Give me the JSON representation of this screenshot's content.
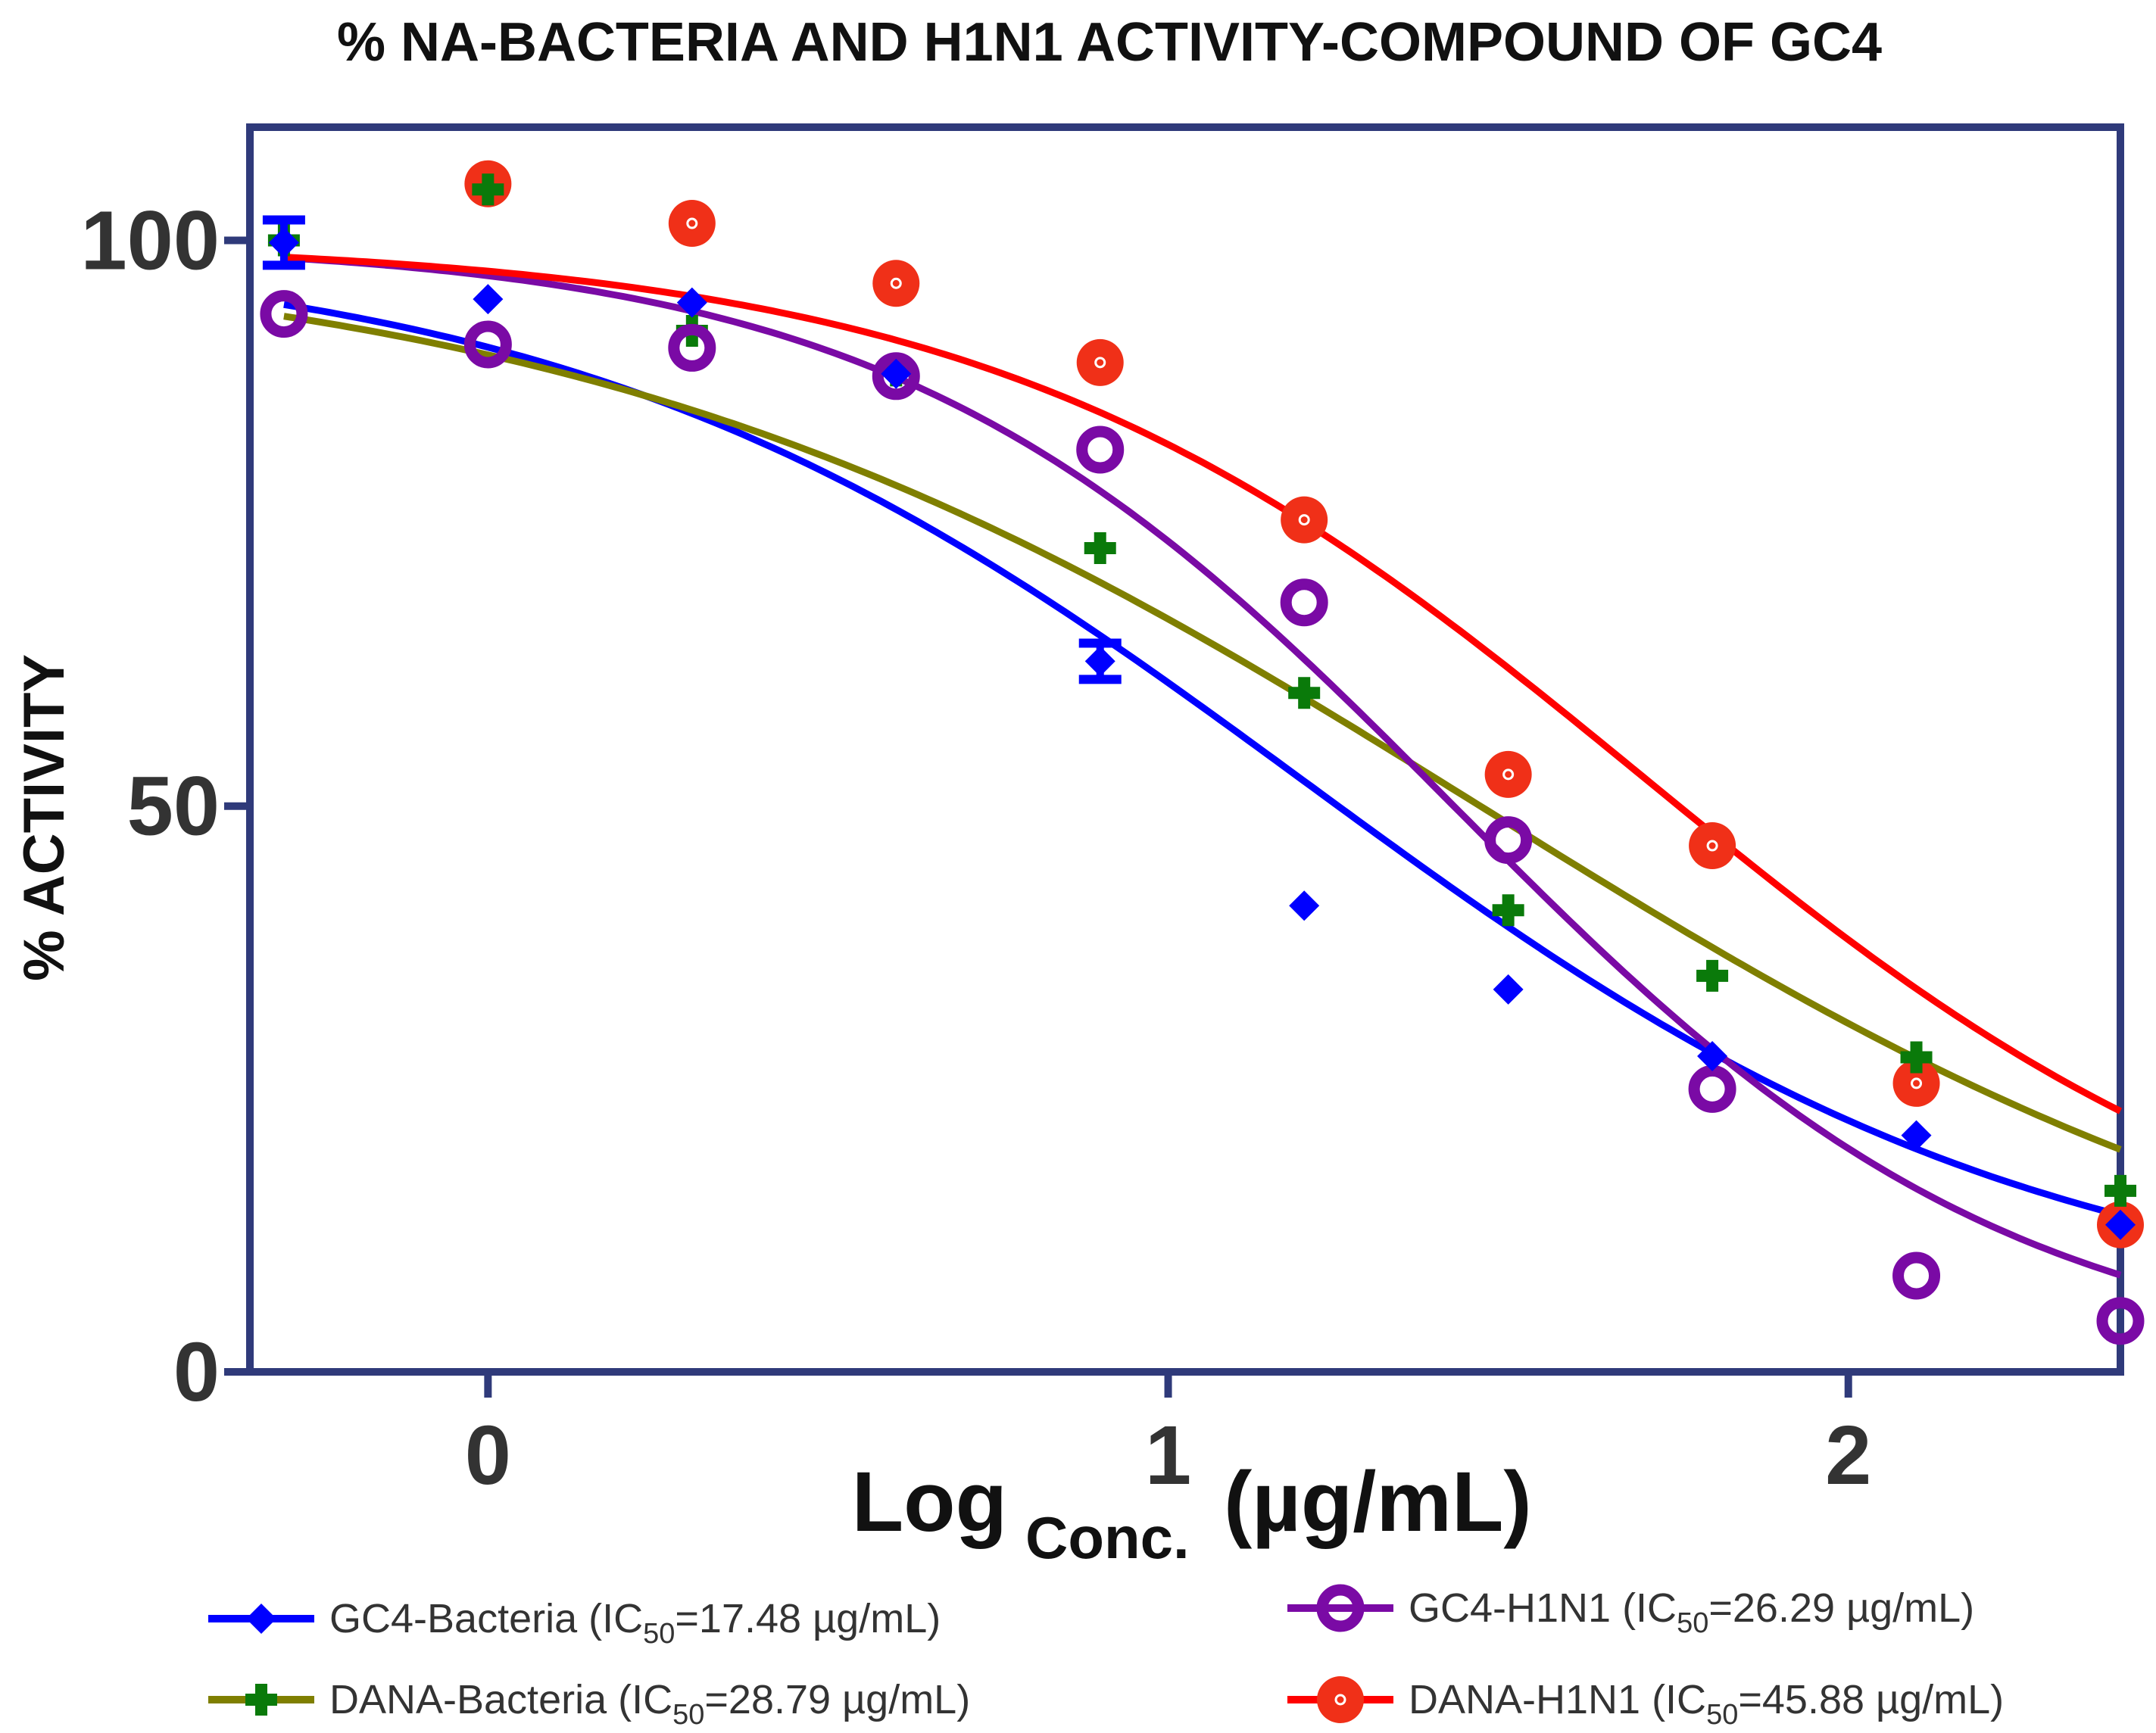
{
  "chart_data": {
    "type": "scatter",
    "title": "% NA-BACTERIA AND H1N1 ACTIVITY-COMPOUND OF GC4",
    "xlabel": "Log",
    "xlabel_subscript": "Conc.",
    "xlabel_unit": "(µg/mL)",
    "ylabel": "% ACTIVITY",
    "xlim": [
      -0.35,
      2.4
    ],
    "ylim": [
      0,
      110
    ],
    "x_ticks": [
      0,
      1,
      2
    ],
    "x_tick_labels": [
      "0",
      "1",
      "2"
    ],
    "y_ticks": [
      0,
      50,
      100
    ],
    "y_tick_labels": [
      "0",
      "50",
      "100"
    ],
    "frame_color": "#2f3a7a",
    "legend_position": "bottom",
    "series": [
      {
        "name": "GC4-Bacteria",
        "legend": {
          "prefix": "GC4-Bacteria (IC",
          "sub": "50",
          "suffix": "=17.48 µg/mL)"
        },
        "color": "#0000ff",
        "marker": "diamond",
        "x": [
          -0.3,
          0.0,
          0.3,
          0.6,
          0.9,
          1.2,
          1.5,
          1.8,
          2.1,
          2.4
        ],
        "y": [
          99.8,
          94.8,
          94.5,
          88.2,
          62.8,
          41.2,
          33.8,
          27.9,
          20.9,
          13.0
        ],
        "error": [
          2.0,
          0,
          0,
          0,
          1.6,
          0,
          0,
          0,
          0,
          0
        ],
        "fit": {
          "top": 100.0,
          "bottom": 4.4,
          "logIC50": 1.2,
          "hill": 0.8
        }
      },
      {
        "name": "DANA-Bacteria",
        "legend": {
          "prefix": "DANA-Bacteria (IC",
          "sub": "50",
          "suffix": "=28.79 µg/mL)"
        },
        "color": "#7f7f00",
        "marker_color": "#0a7a0a",
        "marker": "plus",
        "x": [
          -0.3,
          0.0,
          0.3,
          0.6,
          0.9,
          1.2,
          1.5,
          1.8,
          2.1,
          2.4
        ],
        "y": [
          100.0,
          104.5,
          92.0,
          88.5,
          72.8,
          60.0,
          40.8,
          35.0,
          27.8,
          16.0
        ],
        "fit": {
          "top": 100.0,
          "bottom": 0.0,
          "logIC50": 1.459,
          "hill": 0.65
        }
      },
      {
        "name": "GC4-H1N1",
        "legend": {
          "prefix": "GC4-H1N1 (IC",
          "sub": "50",
          "suffix": "=26.29 µg/mL)"
        },
        "color": "#7a0aa5",
        "marker": "ring",
        "x": [
          -0.3,
          0.0,
          0.3,
          0.6,
          0.9,
          1.2,
          1.5,
          1.8,
          2.1,
          2.4
        ],
        "y": [
          93.5,
          90.8,
          90.5,
          88.0,
          81.5,
          68.0,
          47.0,
          25.0,
          8.5,
          4.5
        ],
        "fit": {
          "top": 100.0,
          "bottom": 0.0,
          "logIC50": 1.42,
          "hill": 1.05
        }
      },
      {
        "name": "DANA-H1N1",
        "legend": {
          "prefix": "DANA-H1N1 (IC",
          "sub": "50",
          "suffix": "=45.88 µg/mL)"
        },
        "color": "#ff0000",
        "marker_color": "#f03018",
        "marker": "dot",
        "x": [
          0.0,
          0.3,
          0.6,
          0.9,
          1.2,
          1.5,
          1.8,
          2.1,
          2.4
        ],
        "y": [
          105.0,
          101.5,
          96.2,
          89.2,
          75.3,
          52.8,
          46.5,
          25.5,
          13.0
        ],
        "fit": {
          "top": 100.0,
          "bottom": 5.0,
          "logIC50": 1.7,
          "hill": 0.9
        }
      }
    ]
  }
}
